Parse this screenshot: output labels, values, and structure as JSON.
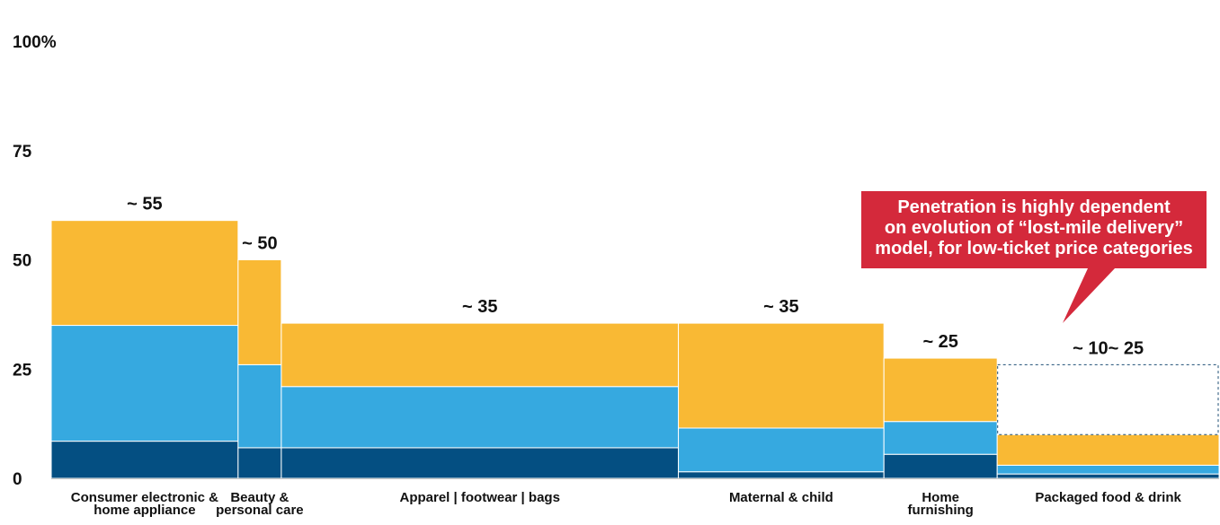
{
  "chart_data": {
    "type": "bar",
    "subtype": "marimekko-stacked",
    "title": "",
    "xlabel": "",
    "ylabel": "",
    "ylim": [
      0,
      100
    ],
    "y_ticks": [
      "0",
      "25",
      "50",
      "75",
      "100%"
    ],
    "grid": false,
    "colors": {
      "bottom": "#044f82",
      "middle": "#36a9e0",
      "top": "#f9b934",
      "callout": "#d4293b"
    },
    "categories": [
      {
        "label_lines": [
          "Consumer electronic &",
          "home appliance"
        ],
        "width_share": 0.16,
        "stack": [
          8.5,
          26.5,
          24
        ],
        "top_label": "~ 55"
      },
      {
        "label_lines": [
          "Beauty &",
          "personal care"
        ],
        "width_share": 0.037,
        "stack": [
          7,
          19,
          24
        ],
        "top_label": "~ 50"
      },
      {
        "label_lines": [
          "Apparel | footwear | bags"
        ],
        "width_share": 0.34,
        "stack": [
          7,
          14,
          14.5
        ],
        "top_label": "~ 35"
      },
      {
        "label_lines": [
          "Maternal & child"
        ],
        "width_share": 0.176,
        "stack": [
          1.5,
          10,
          24
        ],
        "top_label": "~ 35"
      },
      {
        "label_lines": [
          "Home",
          "furnishing"
        ],
        "width_share": 0.097,
        "stack": [
          5.5,
          7.5,
          14.5
        ],
        "top_label": "~ 25"
      },
      {
        "label_lines": [
          "Packaged food & drink"
        ],
        "width_share": 0.19,
        "stack": [
          1,
          2,
          7
        ],
        "top_label": "~ 10~ 25",
        "dashed_upper_bound": 26
      }
    ],
    "annotation": {
      "lines": [
        "Penetration is highly dependent",
        "on evolution of “lost-mile delivery”",
        "model, for low-ticket price categories"
      ]
    }
  }
}
